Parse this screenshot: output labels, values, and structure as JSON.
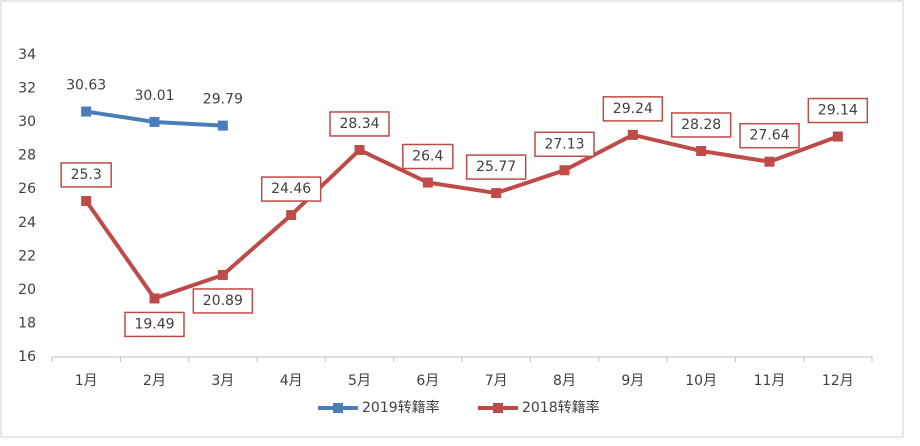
{
  "chart_data": {
    "type": "line",
    "categories": [
      "1月",
      "2月",
      "3月",
      "4月",
      "5月",
      "6月",
      "7月",
      "8月",
      "9月",
      "10月",
      "11月",
      "12月"
    ],
    "series": [
      {
        "name": "2019转籍率",
        "color": "#4a7ebb",
        "values": [
          30.63,
          30.01,
          29.79,
          null,
          null,
          null,
          null,
          null,
          null,
          null,
          null,
          null
        ]
      },
      {
        "name": "2018转籍率",
        "color": "#be4b48",
        "values": [
          25.3,
          19.49,
          20.89,
          24.46,
          28.34,
          26.4,
          25.77,
          27.13,
          29.24,
          28.28,
          27.64,
          29.14
        ]
      }
    ],
    "ylim": [
      16,
      34
    ],
    "yticks": [
      16,
      18,
      20,
      22,
      24,
      26,
      28,
      30,
      32,
      34
    ],
    "grid": false,
    "legend": "bottom"
  }
}
